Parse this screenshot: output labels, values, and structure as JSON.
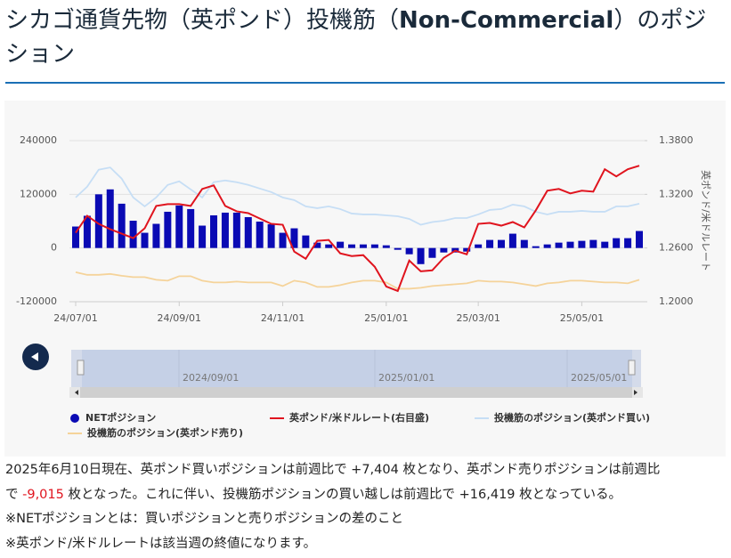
{
  "header": {
    "title": [
      "シカゴ通貨先物（英ポンド）投機筋（",
      "Non-Commercial",
      "）のポジション"
    ]
  },
  "chart_data": {
    "type": "bar",
    "categories": [
      "24/07/01",
      null,
      null,
      null,
      null,
      null,
      null,
      null,
      null,
      "24/09/01",
      null,
      null,
      null,
      null,
      null,
      null,
      null,
      null,
      "24/11/01",
      null,
      null,
      null,
      null,
      null,
      null,
      null,
      null,
      "25/01/01",
      null,
      null,
      null,
      null,
      null,
      null,
      null,
      "25/03/01",
      null,
      null,
      null,
      null,
      null,
      null,
      null,
      null,
      "25/05/01",
      null,
      null,
      null,
      null,
      null
    ],
    "series": [
      {
        "name": "NETポジション",
        "type": "bar",
        "color": "#0a0ab4",
        "values": [
          48000,
          72000,
          120000,
          131000,
          99000,
          61000,
          34000,
          54000,
          81000,
          95000,
          87000,
          50000,
          73000,
          79000,
          79000,
          69000,
          59000,
          53000,
          34000,
          44000,
          28000,
          12000,
          8000,
          14000,
          8000,
          8000,
          8000,
          6000,
          -4000,
          -14000,
          -36000,
          -22000,
          -10000,
          -10000,
          -8000,
          8000,
          18000,
          18000,
          32000,
          18000,
          4000,
          8000,
          12000,
          14000,
          16000,
          18000,
          14000,
          22000,
          22000,
          38000
        ]
      },
      {
        "name": "英ポンド/米ドルレート(右目盛)",
        "type": "line",
        "axis": "y2",
        "color": "#e0141e",
        "values": [
          1.277,
          1.296,
          1.287,
          1.281,
          1.276,
          1.271,
          1.282,
          1.307,
          1.309,
          1.309,
          1.307,
          1.326,
          1.33,
          1.307,
          1.301,
          1.299,
          1.293,
          1.287,
          1.286,
          1.256,
          1.248,
          1.268,
          1.269,
          1.254,
          1.251,
          1.252,
          1.239,
          1.217,
          1.212,
          1.246,
          1.234,
          1.235,
          1.249,
          1.257,
          1.253,
          1.287,
          1.288,
          1.285,
          1.289,
          1.283,
          1.302,
          1.324,
          1.326,
          1.321,
          1.324,
          1.323,
          1.348,
          1.34,
          1.348,
          1.352
        ]
      },
      {
        "name": "投機筋のポジション(英ポンド買い)",
        "type": "line",
        "color": "#c6def5",
        "values": [
          113000,
          137000,
          175000,
          180000,
          155000,
          113000,
          93000,
          113000,
          141000,
          149000,
          131000,
          113000,
          147000,
          151000,
          147000,
          141000,
          133000,
          125000,
          113000,
          107000,
          93000,
          89000,
          93000,
          87000,
          77000,
          75000,
          75000,
          73000,
          71000,
          65000,
          52000,
          58000,
          61000,
          67000,
          67000,
          75000,
          85000,
          87000,
          97000,
          93000,
          81000,
          75000,
          81000,
          81000,
          83000,
          81000,
          81000,
          93000,
          93000,
          99000
        ]
      },
      {
        "name": "投機筋のポジション(英ポンド売り)",
        "type": "line",
        "color": "#f5d39a",
        "values": [
          -54000,
          -60000,
          -60000,
          -58000,
          -62000,
          -65000,
          -65000,
          -71000,
          -73000,
          -63000,
          -63000,
          -73000,
          -77000,
          -77000,
          -75000,
          -77000,
          -77000,
          -77000,
          -85000,
          -73000,
          -77000,
          -87000,
          -87000,
          -83000,
          -77000,
          -73000,
          -73000,
          -77000,
          -91000,
          -91000,
          -89000,
          -85000,
          -83000,
          -81000,
          -79000,
          -73000,
          -75000,
          -75000,
          -77000,
          -81000,
          -85000,
          -79000,
          -77000,
          -73000,
          -73000,
          -75000,
          -77000,
          -77000,
          -79000,
          -71000
        ]
      }
    ],
    "ylim": [
      -120000,
      240000
    ],
    "yticks": [
      -120000,
      0,
      120000,
      240000
    ],
    "y2lim": [
      1.2,
      1.38
    ],
    "y2ticks": [
      {
        "value": 1.2,
        "label": "1.2000"
      },
      {
        "value": 1.26,
        "label": "1.2600"
      },
      {
        "value": 1.32,
        "label": "1.3200"
      },
      {
        "value": 1.38,
        "label": "1.3800"
      }
    ],
    "y2_label": "英ポンド/米ドルレート",
    "grid": true,
    "navigator_labels": [
      "2024/09/01",
      "2025/01/01",
      "2025/05/01"
    ]
  },
  "notes": [
    [
      "2025年6月10日現在、英ポンド買いポジションは前週比で +7,404 枚となり、英ポンド売りポジションは前週比",
      "で ",
      "-9,015",
      " 枚となった。これに伴い、投機筋ポジションの買い越しは前週比で +16,419 枚となっている。"
    ],
    "※NETポジションとは：買いポジションと売りポジションの差のこと",
    "※英ポンド/米ドルレートは該当週の終値になります。"
  ]
}
